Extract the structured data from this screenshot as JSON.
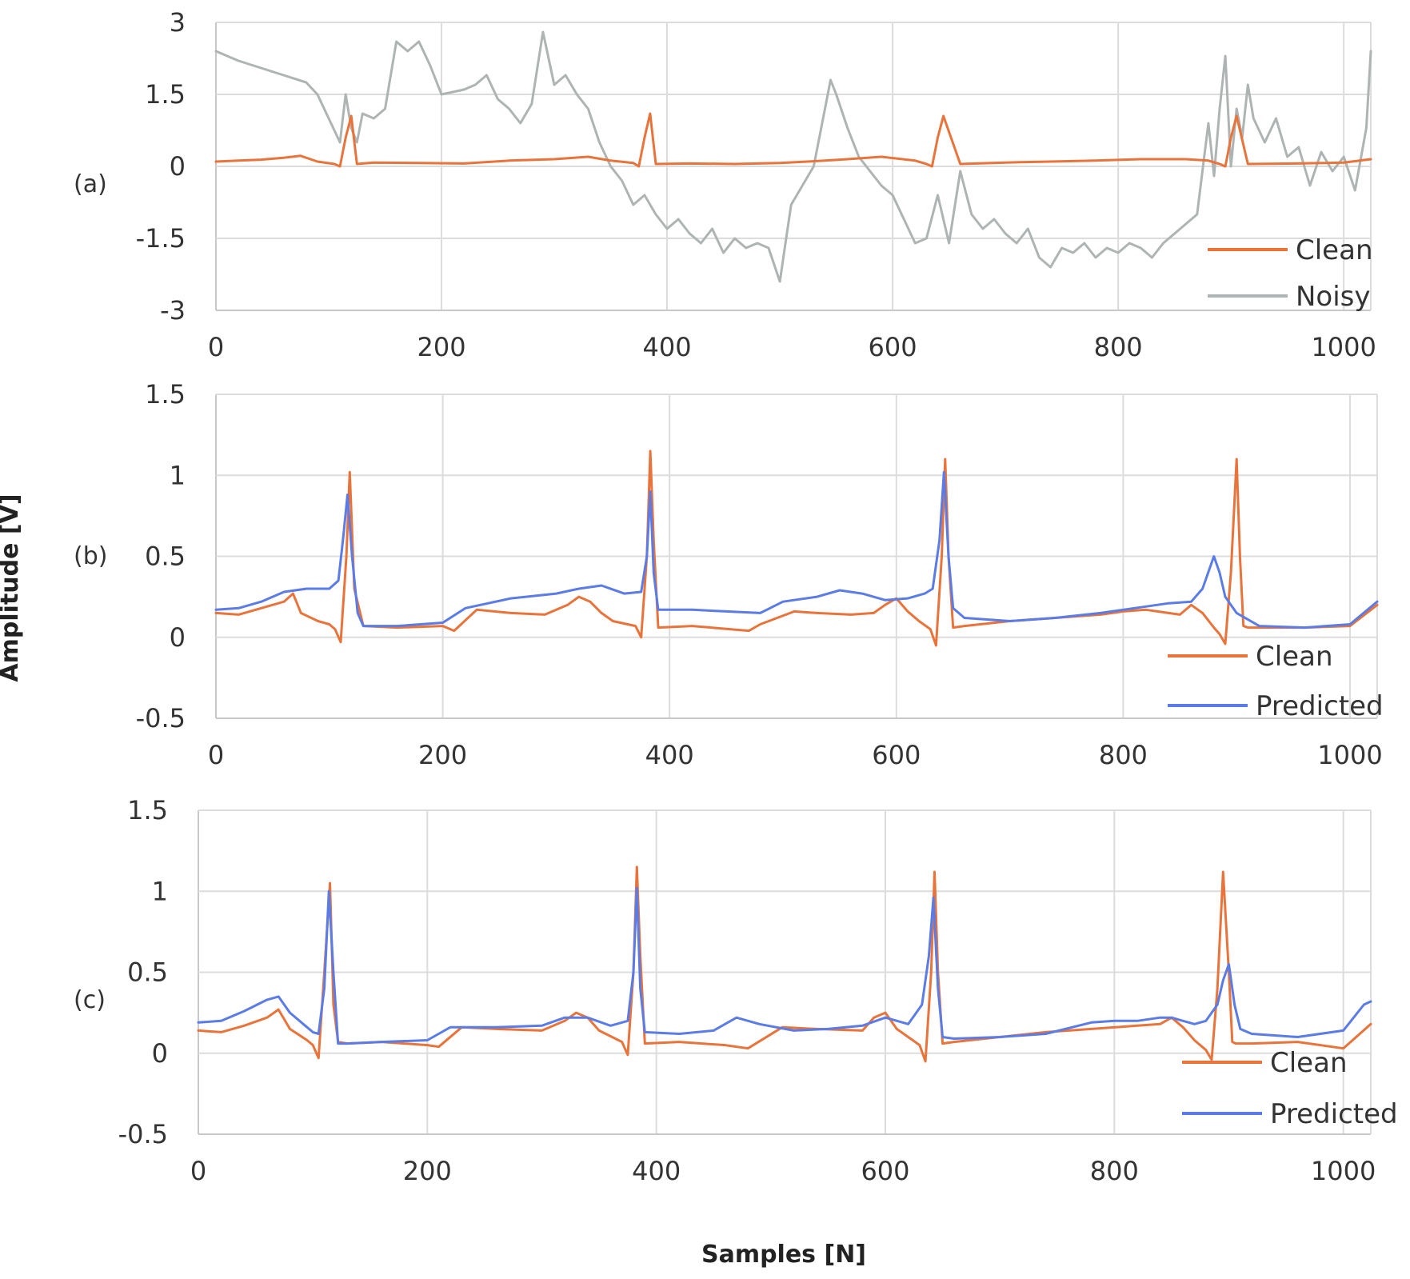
{
  "figure": {
    "ylabel": "Amplitude [V]",
    "xlabel": "Samples [N]"
  },
  "chart_data": [
    {
      "type": "line",
      "panel_label": "(a)",
      "xlim": [
        0,
        1024
      ],
      "ylim": [
        -3,
        3
      ],
      "xticks": [
        0,
        200,
        400,
        600,
        800,
        1000
      ],
      "yticks": [
        -3,
        -1.5,
        0,
        1.5,
        3
      ],
      "xtick_labels": [
        "0",
        "200",
        "400",
        "600",
        "800",
        "1000"
      ],
      "ytick_labels": [
        "-3",
        "-1.5",
        "0",
        "1.5",
        "3"
      ],
      "legend_position": "bottom-right",
      "series": [
        {
          "name": "Clean",
          "color": "#e8743b",
          "x": [
            0,
            20,
            40,
            60,
            75,
            90,
            105,
            110,
            115,
            120,
            125,
            140,
            180,
            220,
            260,
            300,
            330,
            350,
            370,
            375,
            380,
            385,
            390,
            420,
            460,
            500,
            540,
            560,
            590,
            620,
            630,
            635,
            640,
            645,
            660,
            700,
            740,
            780,
            820,
            860,
            880,
            890,
            895,
            900,
            905,
            915,
            960,
            1000,
            1024
          ],
          "y": [
            0.1,
            0.12,
            0.14,
            0.18,
            0.22,
            0.1,
            0.05,
            0.0,
            0.6,
            1.05,
            0.05,
            0.08,
            0.07,
            0.06,
            0.12,
            0.15,
            0.2,
            0.12,
            0.07,
            0.0,
            0.6,
            1.1,
            0.05,
            0.06,
            0.05,
            0.07,
            0.12,
            0.15,
            0.2,
            0.12,
            0.05,
            0.0,
            0.6,
            1.05,
            0.05,
            0.08,
            0.1,
            0.12,
            0.15,
            0.15,
            0.12,
            0.05,
            0.0,
            0.6,
            1.05,
            0.05,
            0.06,
            0.08,
            0.15
          ]
        },
        {
          "name": "Noisy",
          "color": "#aeb4b4",
          "x": [
            0,
            20,
            40,
            60,
            80,
            90,
            100,
            110,
            115,
            120,
            125,
            130,
            140,
            150,
            160,
            170,
            180,
            190,
            200,
            210,
            220,
            230,
            240,
            250,
            260,
            270,
            280,
            290,
            300,
            310,
            320,
            330,
            340,
            350,
            360,
            370,
            380,
            390,
            400,
            410,
            420,
            430,
            440,
            450,
            460,
            470,
            480,
            490,
            500,
            505,
            510,
            520,
            530,
            540,
            545,
            550,
            560,
            570,
            580,
            590,
            600,
            610,
            620,
            630,
            640,
            650,
            660,
            670,
            680,
            690,
            700,
            710,
            720,
            730,
            740,
            750,
            760,
            770,
            780,
            790,
            800,
            810,
            820,
            830,
            840,
            850,
            860,
            870,
            880,
            885,
            890,
            895,
            900,
            905,
            910,
            915,
            920,
            930,
            940,
            950,
            960,
            970,
            980,
            990,
            1000,
            1010,
            1020,
            1024
          ],
          "y": [
            2.4,
            2.2,
            2.05,
            1.9,
            1.75,
            1.5,
            1.0,
            0.5,
            1.5,
            0.8,
            0.5,
            1.1,
            1.0,
            1.2,
            2.6,
            2.4,
            2.6,
            2.1,
            1.5,
            1.55,
            1.6,
            1.7,
            1.9,
            1.4,
            1.2,
            0.9,
            1.3,
            2.8,
            1.7,
            1.9,
            1.5,
            1.2,
            0.5,
            0.0,
            -0.3,
            -0.8,
            -0.6,
            -1.0,
            -1.3,
            -1.1,
            -1.4,
            -1.6,
            -1.3,
            -1.8,
            -1.5,
            -1.7,
            -1.6,
            -1.7,
            -2.4,
            -1.6,
            -0.8,
            -0.4,
            0.0,
            1.2,
            1.8,
            1.5,
            0.8,
            0.2,
            -0.1,
            -0.4,
            -0.6,
            -1.1,
            -1.6,
            -1.5,
            -0.6,
            -1.6,
            -0.1,
            -1.0,
            -1.3,
            -1.1,
            -1.4,
            -1.6,
            -1.3,
            -1.9,
            -2.1,
            -1.7,
            -1.8,
            -1.6,
            -1.9,
            -1.7,
            -1.8,
            -1.6,
            -1.7,
            -1.9,
            -1.6,
            -1.4,
            -1.2,
            -1.0,
            0.9,
            -0.2,
            1.2,
            2.3,
            0.0,
            1.2,
            0.6,
            1.7,
            1.0,
            0.5,
            1.0,
            0.2,
            0.4,
            -0.4,
            0.3,
            -0.1,
            0.2,
            -0.5,
            0.8,
            2.4
          ]
        }
      ]
    },
    {
      "type": "line",
      "panel_label": "(b)",
      "xlim": [
        0,
        1024
      ],
      "ylim": [
        -0.5,
        1.5
      ],
      "xticks": [
        0,
        200,
        400,
        600,
        800,
        1000
      ],
      "yticks": [
        -0.5,
        0,
        0.5,
        1,
        1.5
      ],
      "xtick_labels": [
        "0",
        "200",
        "400",
        "600",
        "800",
        "1000"
      ],
      "ytick_labels": [
        "-0.5",
        "0",
        "0.5",
        "1",
        "1.5"
      ],
      "legend_position": "bottom-right",
      "series": [
        {
          "name": "Clean",
          "color": "#e8743b",
          "x": [
            0,
            20,
            40,
            60,
            68,
            75,
            90,
            100,
            105,
            110,
            115,
            118,
            122,
            130,
            160,
            200,
            210,
            230,
            260,
            290,
            310,
            320,
            330,
            340,
            350,
            370,
            375,
            380,
            383,
            386,
            390,
            420,
            470,
            480,
            510,
            530,
            560,
            580,
            590,
            600,
            610,
            620,
            630,
            635,
            640,
            643,
            646,
            650,
            660,
            700,
            740,
            780,
            800,
            820,
            840,
            850,
            860,
            870,
            880,
            885,
            890,
            895,
            900,
            903,
            906,
            910,
            920,
            960,
            1000,
            1024
          ],
          "y": [
            0.15,
            0.14,
            0.18,
            0.22,
            0.27,
            0.15,
            0.1,
            0.08,
            0.05,
            -0.03,
            0.5,
            1.02,
            0.3,
            0.07,
            0.06,
            0.07,
            0.04,
            0.17,
            0.15,
            0.14,
            0.2,
            0.25,
            0.22,
            0.15,
            0.1,
            0.07,
            0.0,
            0.5,
            1.15,
            0.6,
            0.06,
            0.07,
            0.04,
            0.08,
            0.16,
            0.15,
            0.14,
            0.15,
            0.2,
            0.24,
            0.16,
            0.1,
            0.05,
            -0.05,
            0.5,
            1.1,
            0.5,
            0.06,
            0.07,
            0.1,
            0.12,
            0.14,
            0.16,
            0.17,
            0.15,
            0.14,
            0.2,
            0.15,
            0.06,
            0.02,
            -0.04,
            0.4,
            1.1,
            0.5,
            0.07,
            0.06,
            0.06,
            0.06,
            0.07,
            0.2
          ]
        },
        {
          "name": "Predicted",
          "color": "#5b7ce6",
          "x": [
            0,
            20,
            40,
            60,
            80,
            100,
            108,
            112,
            116,
            120,
            125,
            130,
            160,
            200,
            220,
            260,
            300,
            320,
            340,
            360,
            375,
            380,
            383,
            386,
            390,
            420,
            450,
            480,
            500,
            530,
            550,
            570,
            590,
            610,
            625,
            632,
            638,
            642,
            646,
            650,
            660,
            700,
            740,
            780,
            800,
            820,
            840,
            860,
            870,
            875,
            880,
            885,
            890,
            900,
            920,
            960,
            1000,
            1024
          ],
          "y": [
            0.17,
            0.18,
            0.22,
            0.28,
            0.3,
            0.3,
            0.35,
            0.6,
            0.88,
            0.5,
            0.15,
            0.07,
            0.07,
            0.09,
            0.18,
            0.24,
            0.27,
            0.3,
            0.32,
            0.27,
            0.28,
            0.5,
            0.9,
            0.4,
            0.17,
            0.17,
            0.16,
            0.15,
            0.22,
            0.25,
            0.29,
            0.27,
            0.23,
            0.24,
            0.27,
            0.3,
            0.6,
            1.02,
            0.5,
            0.18,
            0.12,
            0.1,
            0.12,
            0.15,
            0.17,
            0.19,
            0.21,
            0.22,
            0.3,
            0.4,
            0.5,
            0.4,
            0.25,
            0.15,
            0.07,
            0.06,
            0.08,
            0.22
          ]
        }
      ]
    },
    {
      "type": "line",
      "panel_label": "(c)",
      "xlim": [
        0,
        1024
      ],
      "ylim": [
        -0.5,
        1.5
      ],
      "xticks": [
        0,
        200,
        400,
        600,
        800,
        1000
      ],
      "yticks": [
        -0.5,
        0,
        0.5,
        1,
        1.5
      ],
      "xtick_labels": [
        "0",
        "200",
        "400",
        "600",
        "800",
        "1000"
      ],
      "ytick_labels": [
        "-0.5",
        "0",
        "0.5",
        "1",
        "1.5"
      ],
      "legend_position": "bottom-right",
      "series": [
        {
          "name": "Clean",
          "color": "#e8743b",
          "x": [
            0,
            20,
            40,
            60,
            70,
            80,
            95,
            100,
            105,
            110,
            115,
            118,
            122,
            130,
            160,
            200,
            210,
            230,
            260,
            300,
            320,
            330,
            340,
            350,
            370,
            375,
            380,
            383,
            386,
            390,
            420,
            460,
            480,
            510,
            540,
            580,
            590,
            600,
            610,
            620,
            630,
            635,
            640,
            643,
            646,
            650,
            660,
            700,
            740,
            780,
            820,
            840,
            850,
            860,
            870,
            880,
            885,
            890,
            895,
            900,
            903,
            906,
            910,
            920,
            960,
            1000,
            1024
          ],
          "y": [
            0.14,
            0.13,
            0.17,
            0.22,
            0.27,
            0.15,
            0.08,
            0.05,
            -0.03,
            0.5,
            1.05,
            0.3,
            0.07,
            0.06,
            0.07,
            0.05,
            0.04,
            0.16,
            0.15,
            0.14,
            0.2,
            0.25,
            0.22,
            0.14,
            0.07,
            -0.01,
            0.5,
            1.15,
            0.6,
            0.06,
            0.07,
            0.05,
            0.03,
            0.16,
            0.15,
            0.14,
            0.22,
            0.25,
            0.15,
            0.1,
            0.05,
            -0.05,
            0.5,
            1.12,
            0.5,
            0.06,
            0.07,
            0.1,
            0.13,
            0.15,
            0.17,
            0.18,
            0.22,
            0.16,
            0.08,
            0.02,
            -0.04,
            0.4,
            1.12,
            0.5,
            0.07,
            0.06,
            0.06,
            0.06,
            0.07,
            0.03,
            0.18
          ]
        },
        {
          "name": "Predicted",
          "color": "#5b7ce6",
          "x": [
            0,
            20,
            40,
            60,
            70,
            80,
            100,
            105,
            110,
            114,
            118,
            122,
            130,
            160,
            200,
            220,
            260,
            300,
            320,
            340,
            360,
            375,
            380,
            383,
            386,
            390,
            420,
            450,
            470,
            490,
            520,
            550,
            580,
            600,
            620,
            632,
            638,
            642,
            646,
            650,
            660,
            700,
            740,
            780,
            800,
            820,
            840,
            850,
            860,
            870,
            880,
            890,
            895,
            900,
            905,
            910,
            920,
            960,
            1000,
            1018,
            1024
          ],
          "y": [
            0.19,
            0.2,
            0.26,
            0.33,
            0.35,
            0.25,
            0.13,
            0.12,
            0.4,
            1.0,
            0.5,
            0.06,
            0.06,
            0.07,
            0.08,
            0.16,
            0.16,
            0.17,
            0.22,
            0.22,
            0.17,
            0.2,
            0.5,
            1.02,
            0.4,
            0.13,
            0.12,
            0.14,
            0.22,
            0.18,
            0.14,
            0.15,
            0.17,
            0.22,
            0.18,
            0.3,
            0.6,
            0.96,
            0.4,
            0.1,
            0.09,
            0.1,
            0.12,
            0.19,
            0.2,
            0.2,
            0.22,
            0.22,
            0.2,
            0.18,
            0.2,
            0.3,
            0.45,
            0.55,
            0.3,
            0.15,
            0.12,
            0.1,
            0.14,
            0.3,
            0.32
          ]
        }
      ]
    }
  ]
}
